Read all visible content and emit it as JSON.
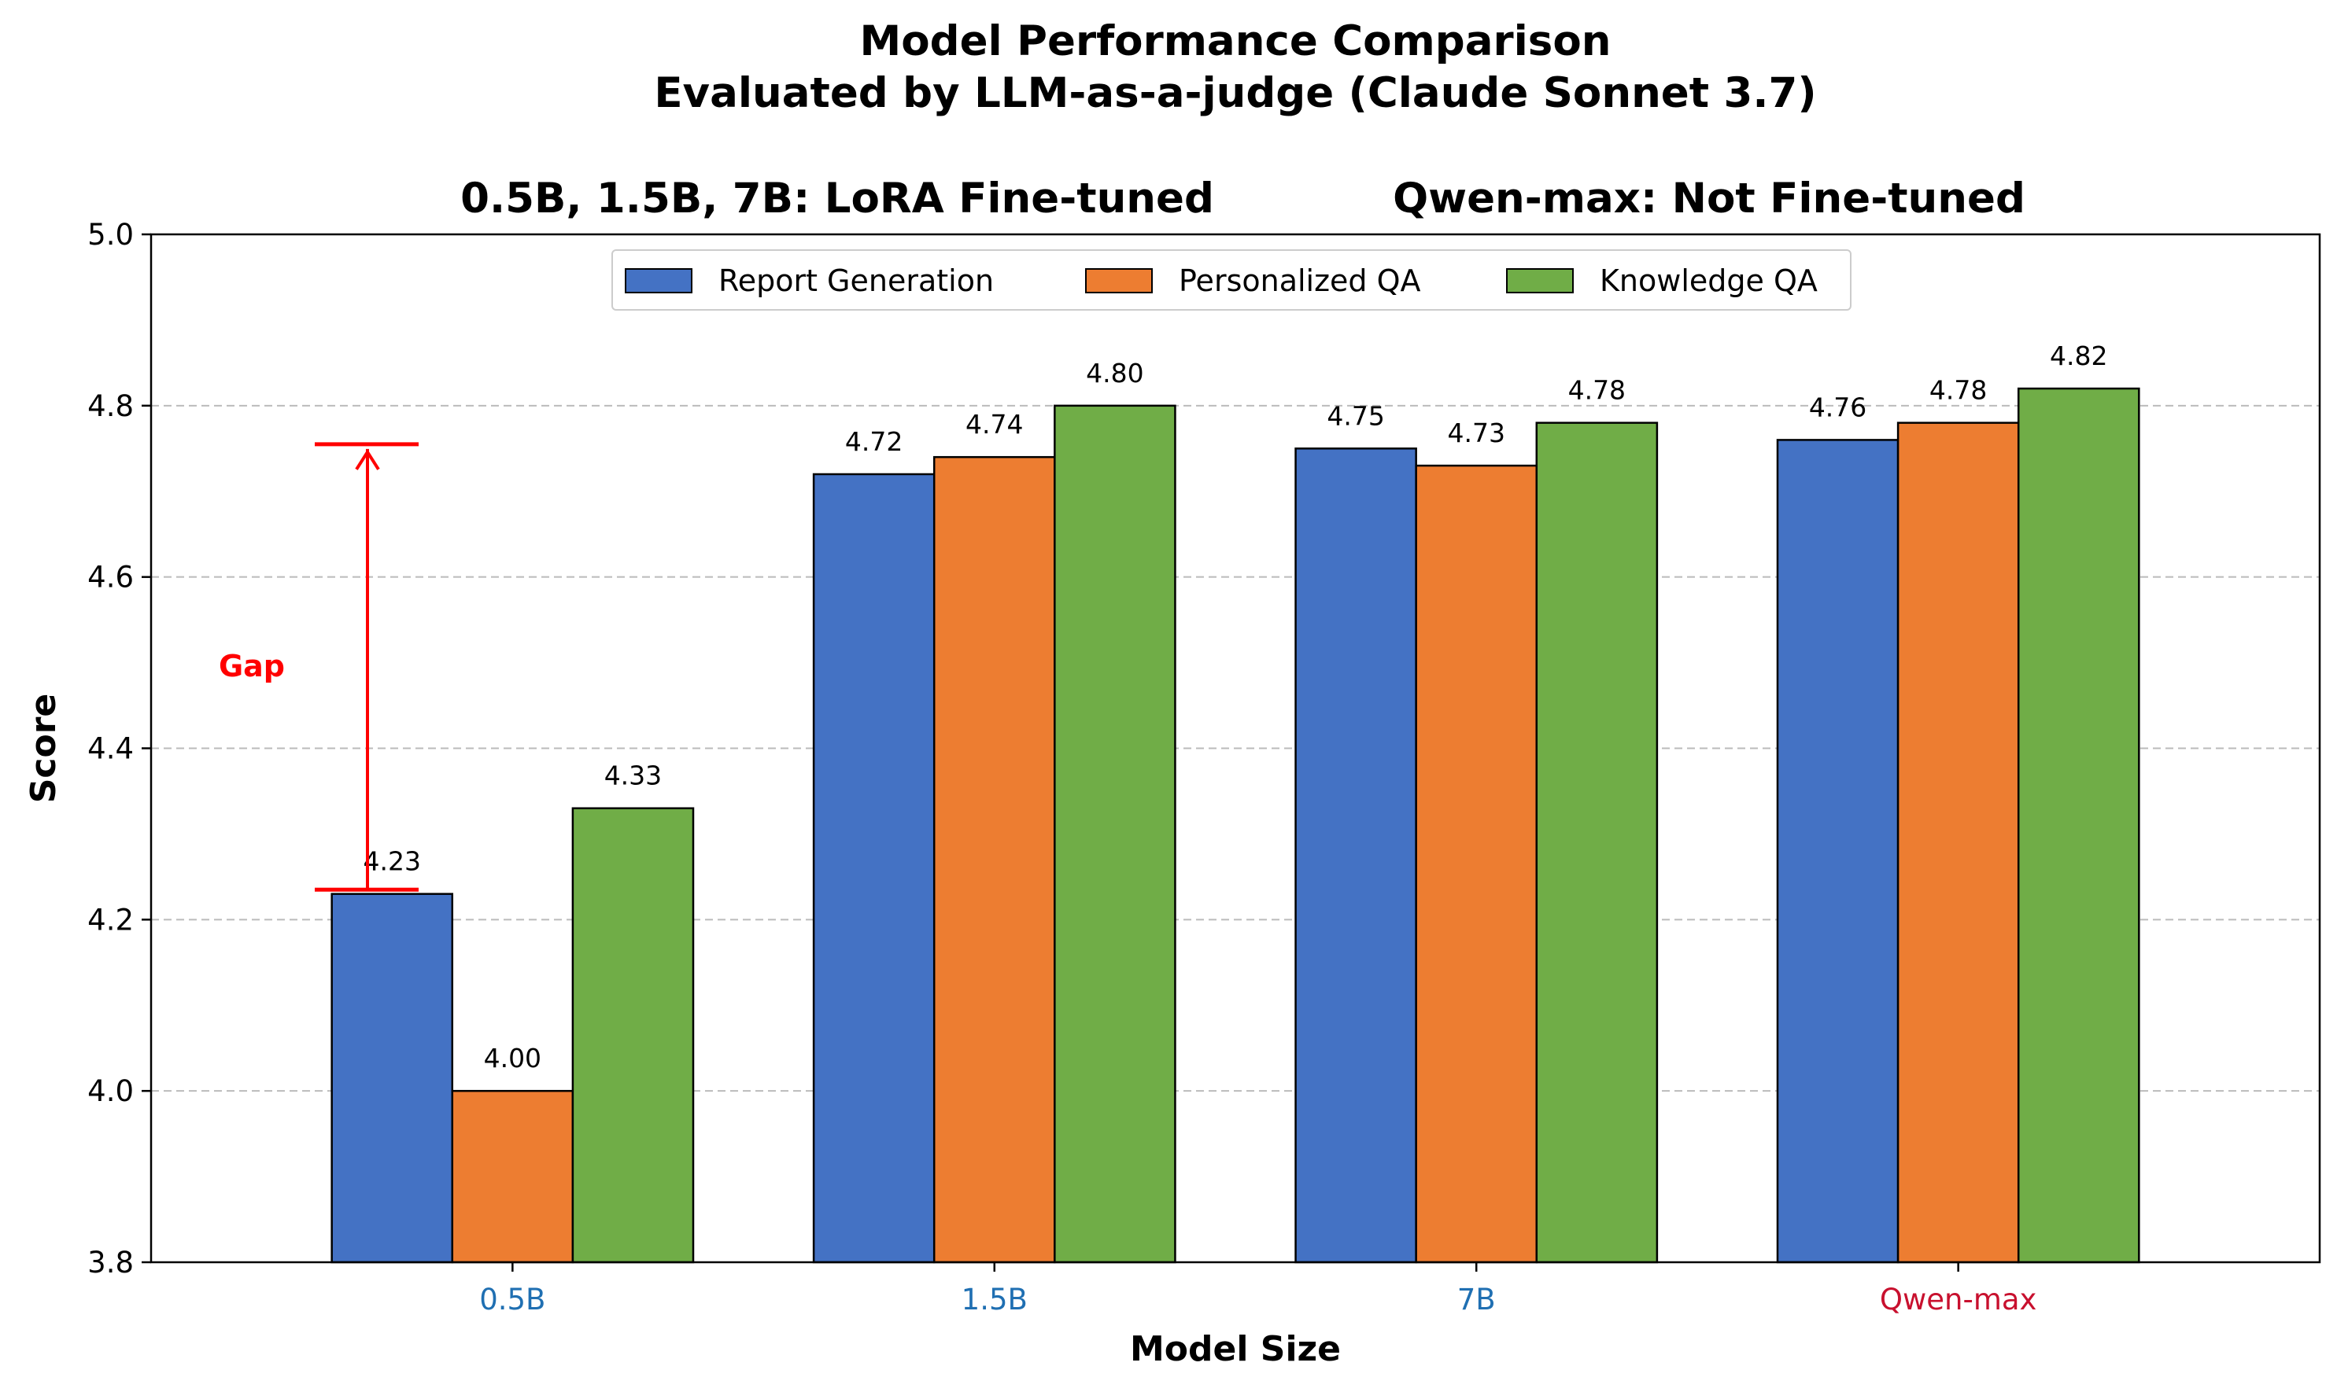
{
  "chart_data": {
    "type": "bar",
    "title_line1": "Model Performance Comparison",
    "title_line2": "Evaluated by LLM-as-a-judge (Claude Sonnet 3.7)",
    "subtitle_left": "0.5B, 1.5B, 7B: LoRA Fine-tuned",
    "subtitle_right": "Qwen-max: Not Fine-tuned",
    "xlabel": "Model Size",
    "ylabel": "Score",
    "ylim": [
      3.8,
      5.0
    ],
    "yticks": [
      "3.8",
      "4.0",
      "4.2",
      "4.4",
      "4.6",
      "4.8",
      "5.0"
    ],
    "grid": "horizontal dashed at 4.0, 4.2, 4.4, 4.6, 4.8",
    "legend_position": "top-center",
    "categories": [
      "0.5B",
      "1.5B",
      "7B",
      "Qwen-max"
    ],
    "category_colors": [
      "#1f6fb2",
      "#1f6fb2",
      "#1f6fb2",
      "#c8102e"
    ],
    "series": [
      {
        "name": "Report Generation",
        "color": "#4472C4",
        "values": [
          4.23,
          4.72,
          4.75,
          4.76
        ],
        "labels": [
          "4.23",
          "4.72",
          "4.75",
          "4.76"
        ]
      },
      {
        "name": "Personalized QA",
        "color": "#ED7D31",
        "values": [
          4.0,
          4.74,
          4.73,
          4.78
        ],
        "labels": [
          "4.00",
          "4.74",
          "4.73",
          "4.78"
        ]
      },
      {
        "name": "Knowledge QA",
        "color": "#70AD47",
        "values": [
          4.33,
          4.8,
          4.78,
          4.82
        ],
        "labels": [
          "4.33",
          "4.80",
          "4.78",
          "4.82"
        ]
      }
    ],
    "annotation": {
      "text": "Gap",
      "color": "#ff0000",
      "from": 4.235,
      "to": 4.755
    }
  }
}
